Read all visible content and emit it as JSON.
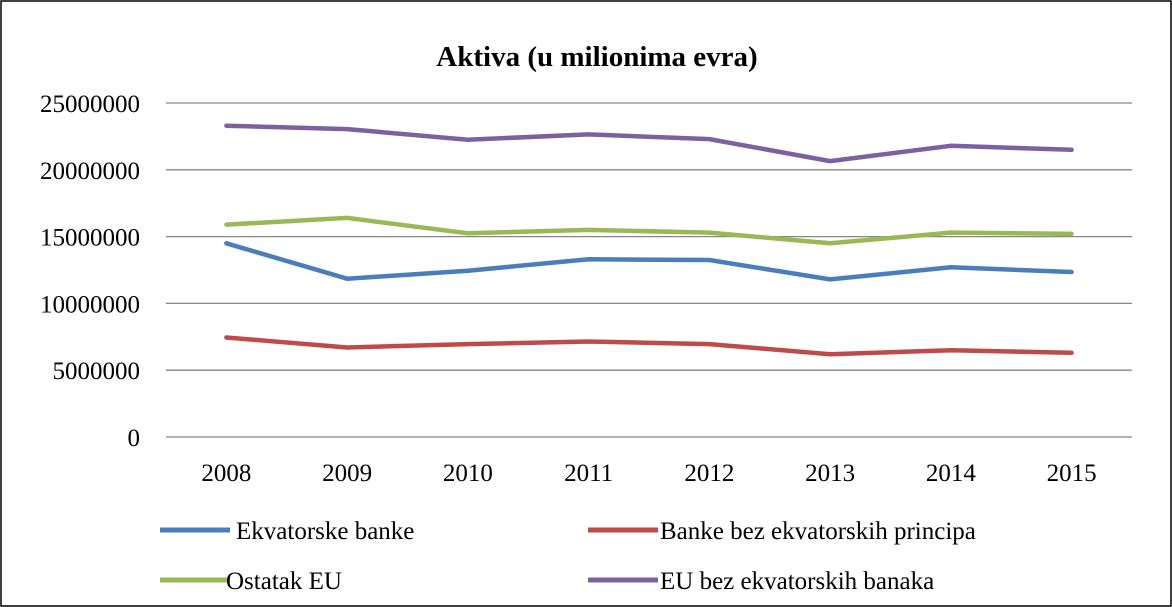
{
  "chart_data": {
    "type": "line",
    "title": "Aktiva (u milionima evra)",
    "xlabel": "",
    "ylabel": "",
    "x": [
      "2008",
      "2009",
      "2010",
      "2011",
      "2012",
      "2013",
      "2014",
      "2015"
    ],
    "ylim": [
      0,
      25000000
    ],
    "yticks": [
      "0",
      "5000000",
      "10000000",
      "15000000",
      "20000000",
      "25000000"
    ],
    "grid": "horizontal",
    "legend": "bottom",
    "series": [
      {
        "name": "Ekvatorske banke",
        "color": "#4a7ebb",
        "values": [
          14500000,
          11850000,
          12450000,
          13300000,
          13250000,
          11800000,
          12700000,
          12350000
        ]
      },
      {
        "name": "Banke bez ekvatorskih principa",
        "color": "#be4b48",
        "values": [
          7450000,
          6700000,
          6950000,
          7150000,
          6950000,
          6200000,
          6500000,
          6300000
        ]
      },
      {
        "name": "Ostatak EU",
        "color": "#98b954",
        "values": [
          15900000,
          16400000,
          15250000,
          15500000,
          15300000,
          14500000,
          15300000,
          15200000
        ]
      },
      {
        "name": "EU bez ekvatorskih banaka",
        "color": "#7d60a0",
        "values": [
          23300000,
          23050000,
          22250000,
          22650000,
          22300000,
          20650000,
          21800000,
          21500000
        ]
      }
    ]
  }
}
